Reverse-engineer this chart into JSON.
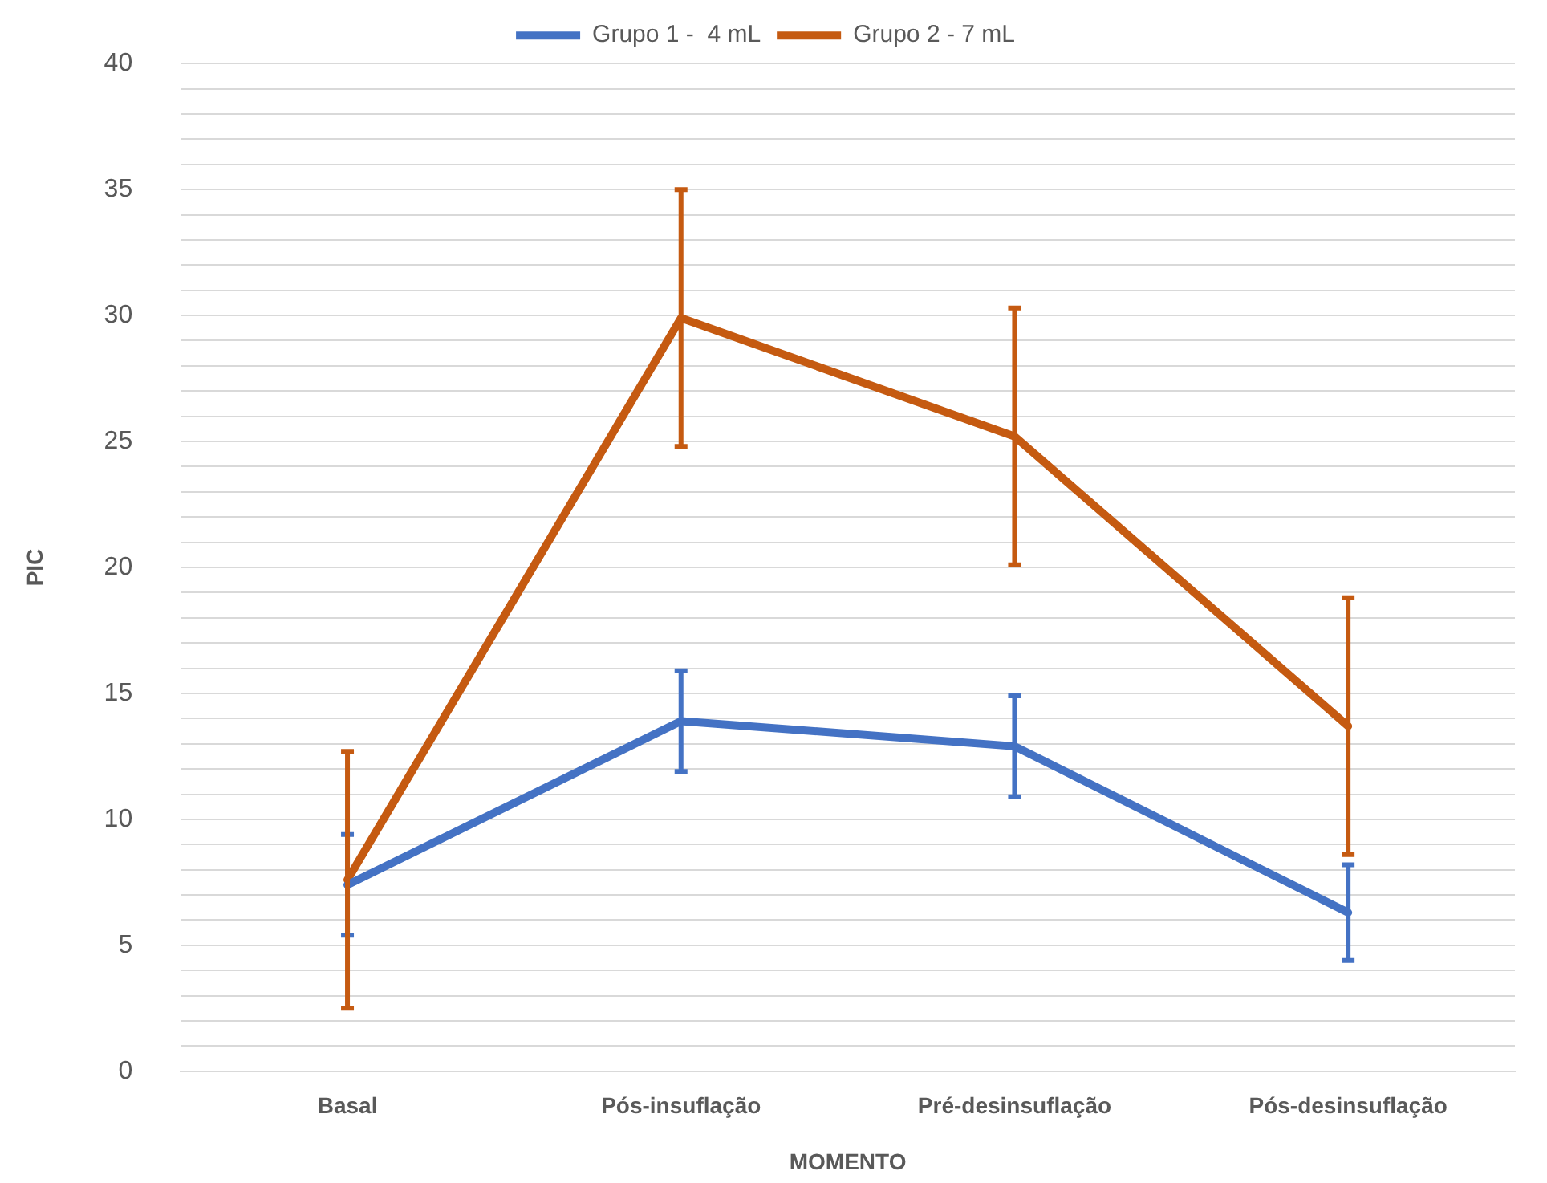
{
  "chart_data": {
    "type": "line",
    "xlabel": "MOMENTO",
    "ylabel": "PIC",
    "categories": [
      "Basal",
      "Pós-insuflação",
      "Pré-desinsuflação",
      "Pós-desinsuflação"
    ],
    "series": [
      {
        "name": "Grupo 1 -  4 mL",
        "color": "#4472c4",
        "values": [
          7.4,
          13.9,
          12.9,
          6.3
        ],
        "errors": [
          2.0,
          2.0,
          2.0,
          1.9
        ]
      },
      {
        "name": "Grupo 2 - 7 mL",
        "color": "#c55a11",
        "values": [
          7.6,
          29.9,
          25.2,
          13.7
        ],
        "errors": [
          5.1,
          5.1,
          5.1,
          5.1
        ]
      }
    ],
    "ylim": [
      0,
      40
    ],
    "yticks": [
      0,
      {
        "value": 1,
        "label": null
      },
      {
        "value": 2,
        "label": null
      },
      {
        "value": 3,
        "label": null
      },
      {
        "value": 4,
        "label": null
      },
      5,
      {
        "value": 6,
        "label": null
      },
      {
        "value": 7,
        "label": null
      },
      {
        "value": 8,
        "label": null
      },
      {
        "value": 9,
        "label": null
      },
      10,
      {
        "value": 11,
        "label": null
      },
      {
        "value": 12,
        "label": null
      },
      {
        "value": 13,
        "label": null
      },
      {
        "value": 14,
        "label": null
      },
      15,
      {
        "value": 16,
        "label": null
      },
      {
        "value": 17,
        "label": null
      },
      {
        "value": 18,
        "label": null
      },
      {
        "value": 19,
        "label": null
      },
      20,
      {
        "value": 21,
        "label": null
      },
      {
        "value": 22,
        "label": null
      },
      {
        "value": 23,
        "label": null
      },
      {
        "value": 24,
        "label": null
      },
      25,
      {
        "value": 26,
        "label": null
      },
      {
        "value": 27,
        "label": null
      },
      {
        "value": 28,
        "label": null
      },
      {
        "value": 29,
        "label": null
      },
      30,
      {
        "value": 31,
        "label": null
      },
      {
        "value": 32,
        "label": null
      },
      {
        "value": 33,
        "label": null
      },
      {
        "value": 34,
        "label": null
      },
      35,
      {
        "value": 36,
        "label": null
      },
      {
        "value": 37,
        "label": null
      },
      {
        "value": 38,
        "label": null
      },
      {
        "value": 39,
        "label": null
      },
      40
    ],
    "grid": "y",
    "legend": "top",
    "marker": "none",
    "line_style": "solid"
  }
}
